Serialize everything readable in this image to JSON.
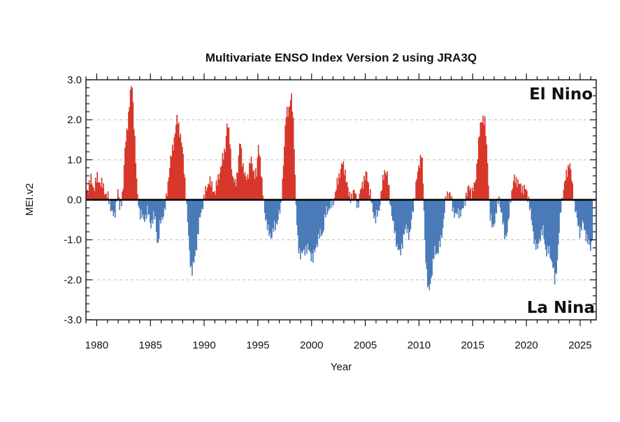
{
  "chart_data": {
    "type": "bar",
    "title": "Multivariate ENSO Index Version 2 using JRA3Q",
    "xlabel": "Year",
    "ylabel": "MEI.v2",
    "xlim": [
      1979,
      2026.5
    ],
    "ylim": [
      -3.0,
      3.0
    ],
    "grid": true,
    "y_ticks": [
      3.0,
      2.0,
      1.0,
      0.0,
      -1.0,
      -2.0,
      -3.0
    ],
    "y_tick_labels": [
      "3.0",
      "2.0",
      "1.0",
      "0.0",
      "-1.0",
      "-2.0",
      "-3.0"
    ],
    "x_ticks": [
      1980,
      1985,
      1990,
      1995,
      2000,
      2005,
      2010,
      2015,
      2020,
      2025
    ],
    "x_tick_labels": [
      "1980",
      "1985",
      "1990",
      "1995",
      "2000",
      "2005",
      "2010",
      "2015",
      "2020",
      "2025"
    ],
    "annotations": {
      "positive": "El Nino",
      "negative": "La Nina"
    },
    "colors": {
      "positive": "#d7372b",
      "negative": "#4a7ab8",
      "zero_line": "#000000"
    },
    "series_description": "Monthly MEI.v2 values, Jan 1979 - early 2026, estimated from figure",
    "anchors": [
      [
        1979.0,
        0.2
      ],
      [
        1979.4,
        0.5
      ],
      [
        1979.7,
        0.3
      ],
      [
        1980.0,
        0.55
      ],
      [
        1980.5,
        0.35
      ],
      [
        1980.9,
        0.1
      ],
      [
        1981.2,
        -0.1
      ],
      [
        1981.6,
        -0.5
      ],
      [
        1981.9,
        0.3
      ],
      [
        1982.1,
        -0.3
      ],
      [
        1982.4,
        0.3
      ],
      [
        1982.6,
        1.3
      ],
      [
        1982.9,
        2.1
      ],
      [
        1983.1,
        2.7
      ],
      [
        1983.25,
        2.85
      ],
      [
        1983.5,
        1.5
      ],
      [
        1983.7,
        0.2
      ],
      [
        1983.95,
        -0.3
      ],
      [
        1984.3,
        -0.5
      ],
      [
        1984.7,
        -0.3
      ],
      [
        1985.0,
        -0.6
      ],
      [
        1985.4,
        -0.4
      ],
      [
        1985.65,
        -1.2
      ],
      [
        1985.9,
        -0.5
      ],
      [
        1986.3,
        -0.3
      ],
      [
        1986.6,
        0.5
      ],
      [
        1986.9,
        1.1
      ],
      [
        1987.2,
        1.6
      ],
      [
        1987.45,
        2.05
      ],
      [
        1987.7,
        1.7
      ],
      [
        1987.95,
        1.2
      ],
      [
        1988.2,
        0.4
      ],
      [
        1988.4,
        -0.5
      ],
      [
        1988.6,
        -1.4
      ],
      [
        1988.8,
        -1.8
      ],
      [
        1989.0,
        -1.6
      ],
      [
        1989.3,
        -1.0
      ],
      [
        1989.6,
        -0.4
      ],
      [
        1989.9,
        0.0
      ],
      [
        1990.1,
        0.2
      ],
      [
        1990.4,
        0.5
      ],
      [
        1990.7,
        0.3
      ],
      [
        1991.0,
        0.2
      ],
      [
        1991.3,
        0.6
      ],
      [
        1991.6,
        0.9
      ],
      [
        1991.9,
        1.3
      ],
      [
        1992.1,
        1.9
      ],
      [
        1992.35,
        1.5
      ],
      [
        1992.6,
        0.5
      ],
      [
        1992.85,
        0.4
      ],
      [
        1993.1,
        0.8
      ],
      [
        1993.3,
        1.5
      ],
      [
        1993.55,
        0.9
      ],
      [
        1993.8,
        0.5
      ],
      [
        1994.0,
        0.6
      ],
      [
        1994.3,
        1.0
      ],
      [
        1994.6,
        0.7
      ],
      [
        1994.85,
        0.6
      ],
      [
        1995.0,
        1.4
      ],
      [
        1995.15,
        1.1
      ],
      [
        1995.35,
        0.3
      ],
      [
        1995.6,
        -0.3
      ],
      [
        1995.9,
        -0.8
      ],
      [
        1996.2,
        -0.9
      ],
      [
        1996.5,
        -0.7
      ],
      [
        1996.8,
        -0.5
      ],
      [
        1997.1,
        -0.2
      ],
      [
        1997.35,
        1.0
      ],
      [
        1997.6,
        2.2
      ],
      [
        1997.85,
        2.3
      ],
      [
        1998.1,
        2.55
      ],
      [
        1998.3,
        1.8
      ],
      [
        1998.45,
        0.2
      ],
      [
        1998.6,
        -0.8
      ],
      [
        1998.75,
        -1.2
      ],
      [
        1999.0,
        -1.4
      ],
      [
        1999.4,
        -1.2
      ],
      [
        1999.8,
        -1.3
      ],
      [
        2000.1,
        -1.5
      ],
      [
        2000.4,
        -1.1
      ],
      [
        2000.7,
        -0.9
      ],
      [
        2001.0,
        -0.8
      ],
      [
        2001.3,
        -0.3
      ],
      [
        2001.6,
        -0.2
      ],
      [
        2001.9,
        -0.1
      ],
      [
        2002.2,
        0.2
      ],
      [
        2002.5,
        0.6
      ],
      [
        2002.8,
        0.9
      ],
      [
        2003.1,
        0.7
      ],
      [
        2003.4,
        0.1
      ],
      [
        2003.7,
        0.1
      ],
      [
        2004.0,
        0.2
      ],
      [
        2004.3,
        -0.2
      ],
      [
        2004.6,
        0.4
      ],
      [
        2004.9,
        0.5
      ],
      [
        2005.1,
        0.7
      ],
      [
        2005.3,
        0.3
      ],
      [
        2005.6,
        -0.2
      ],
      [
        2005.9,
        -0.5
      ],
      [
        2006.2,
        -0.3
      ],
      [
        2006.5,
        0.3
      ],
      [
        2006.8,
        0.8
      ],
      [
        2007.0,
        0.6
      ],
      [
        2007.3,
        -0.1
      ],
      [
        2007.6,
        -0.7
      ],
      [
        2007.9,
        -1.1
      ],
      [
        2008.2,
        -1.4
      ],
      [
        2008.5,
        -0.9
      ],
      [
        2008.8,
        -0.7
      ],
      [
        2009.1,
        -0.9
      ],
      [
        2009.4,
        -0.2
      ],
      [
        2009.7,
        0.4
      ],
      [
        2009.95,
        0.9
      ],
      [
        2010.2,
        1.2
      ],
      [
        2010.35,
        0.3
      ],
      [
        2010.5,
        -1.0
      ],
      [
        2010.7,
        -2.0
      ],
      [
        2010.85,
        -2.35
      ],
      [
        2011.1,
        -1.9
      ],
      [
        2011.4,
        -1.3
      ],
      [
        2011.7,
        -1.3
      ],
      [
        2011.95,
        -1.1
      ],
      [
        2012.2,
        -0.6
      ],
      [
        2012.5,
        0.1
      ],
      [
        2012.8,
        0.2
      ],
      [
        2013.1,
        -0.2
      ],
      [
        2013.4,
        -0.4
      ],
      [
        2013.7,
        -0.3
      ],
      [
        2014.0,
        -0.3
      ],
      [
        2014.3,
        0.1
      ],
      [
        2014.6,
        0.3
      ],
      [
        2014.9,
        0.2
      ],
      [
        2015.2,
        0.4
      ],
      [
        2015.45,
        1.3
      ],
      [
        2015.7,
        1.9
      ],
      [
        2015.9,
        2.1
      ],
      [
        2016.1,
        1.9
      ],
      [
        2016.35,
        0.9
      ],
      [
        2016.55,
        -0.4
      ],
      [
        2016.8,
        -0.7
      ],
      [
        2017.1,
        -0.4
      ],
      [
        2017.4,
        0.1
      ],
      [
        2017.7,
        -0.5
      ],
      [
        2017.95,
        -0.9
      ],
      [
        2018.2,
        -0.8
      ],
      [
        2018.5,
        0.1
      ],
      [
        2018.8,
        0.5
      ],
      [
        2019.1,
        0.5
      ],
      [
        2019.4,
        0.3
      ],
      [
        2019.7,
        0.3
      ],
      [
        2019.95,
        0.2
      ],
      [
        2020.2,
        0.0
      ],
      [
        2020.4,
        -0.5
      ],
      [
        2020.7,
        -1.0
      ],
      [
        2020.95,
        -1.3
      ],
      [
        2021.2,
        -0.9
      ],
      [
        2021.5,
        -0.8
      ],
      [
        2021.8,
        -1.3
      ],
      [
        2022.1,
        -1.3
      ],
      [
        2022.4,
        -1.6
      ],
      [
        2022.6,
        -2.1
      ],
      [
        2022.8,
        -1.6
      ],
      [
        2023.0,
        -0.8
      ],
      [
        2023.2,
        -0.1
      ],
      [
        2023.5,
        0.4
      ],
      [
        2023.75,
        0.7
      ],
      [
        2023.95,
        1.0
      ],
      [
        2024.2,
        0.4
      ],
      [
        2024.45,
        -0.1
      ],
      [
        2024.7,
        -0.6
      ],
      [
        2024.95,
        -0.8
      ],
      [
        2025.2,
        -0.6
      ],
      [
        2025.45,
        -0.8
      ],
      [
        2025.7,
        -1.1
      ],
      [
        2025.95,
        -1.2
      ],
      [
        2026.1,
        -0.8
      ]
    ]
  }
}
